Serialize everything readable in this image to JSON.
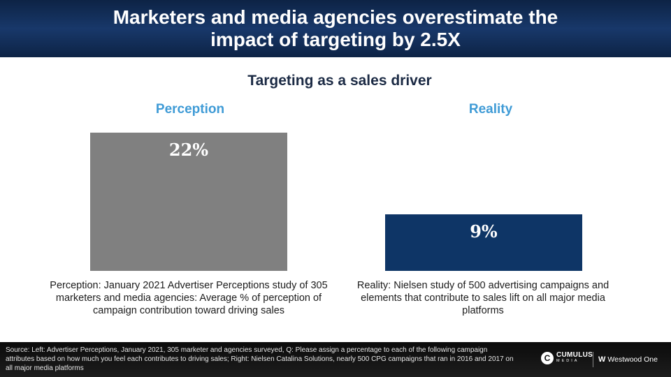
{
  "header": {
    "title_line1": "Marketers and media agencies overestimate the",
    "title_line2": "impact of targeting by 2.5X"
  },
  "subtitle": "Targeting as a sales driver",
  "columns": {
    "perception": {
      "heading": "Perception"
    },
    "reality": {
      "heading": "Reality"
    }
  },
  "chart_data": {
    "type": "bar",
    "title": "Targeting as a sales driver",
    "categories": [
      "Perception",
      "Reality"
    ],
    "values": [
      22,
      9
    ],
    "value_labels": [
      "22%",
      "9%"
    ],
    "colors": [
      "#808080",
      "#0e3566"
    ],
    "label_color": "#ffffff",
    "unit": "%",
    "ylim": [
      0,
      22
    ],
    "xlabel": "",
    "ylabel": "",
    "grid": false,
    "legend": "none"
  },
  "notes": {
    "left": "Perception: January 2021 Advertiser Perceptions study of 305 marketers and media agencies: Average % of perception of campaign contribution toward driving sales",
    "right": "Reality: Nielsen study of 500 advertising campaigns and elements that contribute to sales lift on all major media platforms"
  },
  "footer": {
    "source": "Source: Left: Advertiser Perceptions, January 2021, 305 marketer and agencies surveyed, Q: Please assign a percentage to each of the following campaign attributes based on how much you feel each contributes to driving sales; Right: Nielsen Catalina Solutions, nearly 500 CPG campaigns that ran in 2016 and 2017 on all major media platforms",
    "logo_cumulus_mark": "C",
    "logo_cumulus_name": "CUMULUS",
    "logo_cumulus_sub": "MEDIA",
    "logo_westwood_mark": "W",
    "logo_westwood_name": "Westwood One"
  }
}
